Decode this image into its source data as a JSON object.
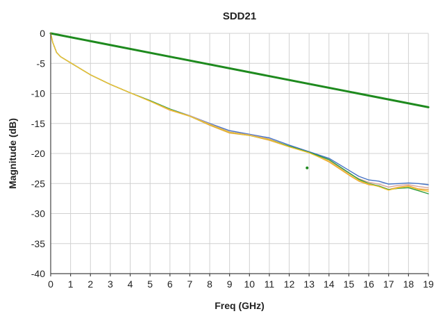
{
  "chart_data": {
    "type": "line",
    "title": "SDD21",
    "xlabel": "Freq (GHz)",
    "ylabel": "Magnitude (dB)",
    "xlim": [
      0,
      19
    ],
    "ylim": [
      -40,
      0
    ],
    "xticks": [
      "0",
      "1",
      "2",
      "3",
      "4",
      "5",
      "6",
      "7",
      "8",
      "9",
      "10",
      "11",
      "12",
      "13",
      "14",
      "15",
      "16",
      "17",
      "18",
      "19"
    ],
    "yticks": [
      "0",
      "-5",
      "-10",
      "-15",
      "-20",
      "-25",
      "-30",
      "-35",
      "-40"
    ],
    "grid": true,
    "legend": "none",
    "series": [
      {
        "color": "#1e8a1e",
        "x": [
          0,
          19
        ],
        "y": [
          0,
          -12.3
        ],
        "width": 3
      },
      {
        "color": "#4472c4",
        "x": [
          0,
          0.1,
          0.3,
          0.5,
          1,
          2,
          3,
          4,
          5,
          6,
          7,
          8,
          9,
          10,
          11,
          12,
          13,
          14,
          15,
          15.5,
          16,
          16.5,
          17,
          17.5,
          18,
          18.5,
          19
        ],
        "y": [
          0,
          -1.5,
          -3.2,
          -3.9,
          -4.9,
          -6.9,
          -8.5,
          -9.9,
          -11.2,
          -12.6,
          -13.7,
          -15.0,
          -16.2,
          -16.8,
          -17.4,
          -18.6,
          -19.7,
          -20.8,
          -22.8,
          -23.8,
          -24.4,
          -24.6,
          -25.1,
          -25.0,
          -24.9,
          -25.0,
          -25.2
        ]
      },
      {
        "color": "#e8a040",
        "x": [
          0,
          0.1,
          0.3,
          0.5,
          1,
          2,
          3,
          4,
          5,
          6,
          7,
          8,
          9,
          10,
          11,
          12,
          13,
          14,
          15,
          15.5,
          16,
          16.5,
          17,
          17.5,
          18,
          18.5,
          19
        ],
        "y": [
          0,
          -1.5,
          -3.2,
          -3.9,
          -4.9,
          -6.9,
          -8.5,
          -9.9,
          -11.3,
          -12.8,
          -13.8,
          -15.3,
          -16.6,
          -17.0,
          -17.8,
          -18.9,
          -19.8,
          -21.4,
          -23.6,
          -24.6,
          -25.2,
          -25.4,
          -26.0,
          -25.6,
          -25.4,
          -25.9,
          -26.0
        ]
      },
      {
        "color": "#d9a59a",
        "x": [
          0,
          0.1,
          0.3,
          0.5,
          1,
          2,
          3,
          4,
          5,
          6,
          7,
          8,
          9,
          10,
          11,
          12,
          13,
          14,
          15,
          15.5,
          16,
          16.5,
          17,
          17.5,
          18,
          18.5,
          19
        ],
        "y": [
          0,
          -1.5,
          -3.2,
          -3.9,
          -4.9,
          -6.9,
          -8.5,
          -9.9,
          -11.2,
          -12.7,
          -13.7,
          -15.1,
          -16.4,
          -16.9,
          -17.6,
          -18.8,
          -19.8,
          -21.2,
          -23.3,
          -24.2,
          -24.8,
          -25.1,
          -25.6,
          -25.3,
          -25.2,
          -25.5,
          -25.7
        ]
      },
      {
        "color": "#2e9c3e",
        "x": [
          0,
          0.1,
          0.3,
          0.5,
          1,
          2,
          3,
          4,
          5,
          6,
          7,
          8,
          9,
          10,
          11,
          12,
          13,
          14,
          15,
          15.5,
          16,
          16.5,
          17,
          17.5,
          18,
          18.5,
          19
        ],
        "y": [
          0,
          -1.5,
          -3.2,
          -3.9,
          -4.9,
          -6.9,
          -8.5,
          -9.9,
          -11.2,
          -12.6,
          -13.8,
          -15.2,
          -16.5,
          -17.0,
          -17.7,
          -18.8,
          -19.8,
          -21.0,
          -23.2,
          -24.3,
          -25.0,
          -25.4,
          -26.0,
          -25.8,
          -25.7,
          -26.2,
          -26.7
        ]
      },
      {
        "color": "#f0c232",
        "x": [
          0,
          0.1,
          0.3,
          0.5,
          1,
          2,
          3,
          4,
          5,
          6,
          7,
          8,
          9,
          10,
          11,
          12,
          13,
          14,
          15,
          15.5,
          16,
          16.5,
          17,
          17.5,
          18,
          18.5,
          19
        ],
        "y": [
          0,
          -1.5,
          -3.2,
          -3.9,
          -4.9,
          -6.9,
          -8.5,
          -9.9,
          -11.3,
          -12.7,
          -13.8,
          -15.2,
          -16.5,
          -17.0,
          -17.7,
          -18.9,
          -19.9,
          -21.3,
          -23.5,
          -24.5,
          -25.1,
          -25.5,
          -26.1,
          -25.7,
          -25.5,
          -26.0,
          -26.3
        ]
      }
    ],
    "markers": [
      {
        "x": 12.9,
        "y": -22.4,
        "color": "#1e8a1e"
      }
    ]
  }
}
